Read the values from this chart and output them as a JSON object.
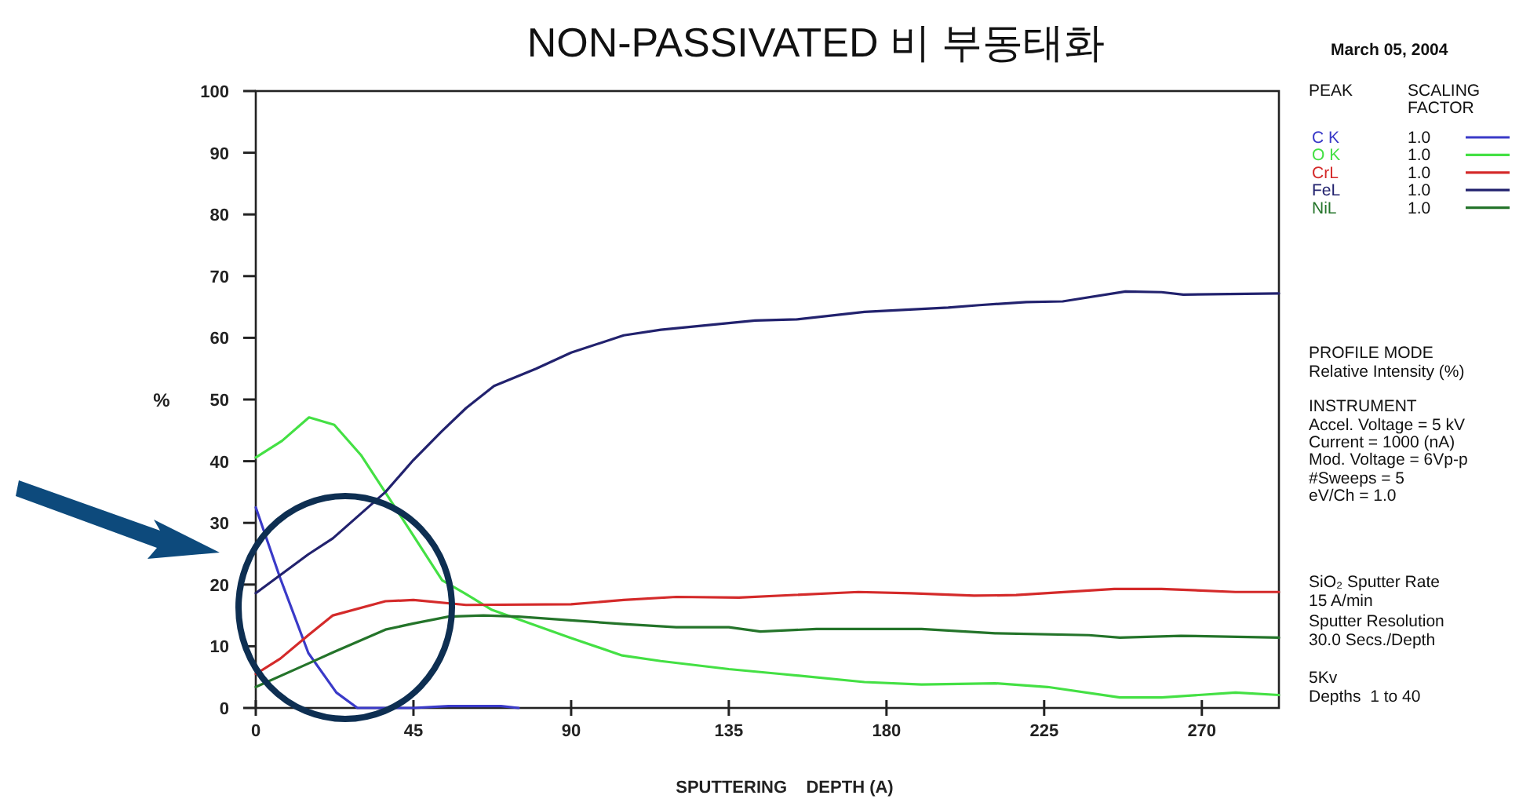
{
  "chart_data": {
    "type": "line",
    "title": "NON-PASSIVATED 비  부동태화",
    "xlabel": "SPUTTERING    DEPTH (A)",
    "ylabel": "%",
    "legend_title": "PEAK",
    "legend": "right",
    "xlim": [
      0,
      292
    ],
    "ylim": [
      0,
      100
    ],
    "xticks": [
      0,
      45,
      90,
      135,
      180,
      225,
      270
    ],
    "yticks": [
      0,
      10,
      20,
      30,
      40,
      50,
      60,
      70,
      80,
      90,
      100
    ],
    "series": [
      {
        "name": "C K",
        "color": "#3a3ac8",
        "x": [
          0,
          7,
          15,
          23,
          29,
          45,
          55,
          60,
          70,
          75
        ],
        "values": [
          32.5,
          21,
          8.9,
          2.5,
          0,
          0,
          0.3,
          0.3,
          0.3,
          0
        ]
      },
      {
        "name": "O K",
        "color": "#44e044",
        "x": [
          0,
          7.5,
          15.2,
          22.4,
          30,
          36.8,
          45,
          53.2,
          59.6,
          67.4,
          89.7,
          104.6,
          115.6,
          135,
          150,
          173.7,
          190,
          211,
          226,
          246.6,
          258.5,
          279.6,
          292
        ],
        "values": [
          40.6,
          43.3,
          47.1,
          45.9,
          41,
          35.1,
          27.9,
          20.7,
          18.6,
          15.9,
          11.4,
          8.5,
          7.6,
          6.3,
          5.5,
          4.2,
          3.8,
          4.0,
          3.4,
          1.7,
          1.7,
          2.5,
          2.1
        ]
      },
      {
        "name": "CrL",
        "color": "#d42a2a",
        "x": [
          0,
          7,
          15,
          22,
          37,
          45,
          60,
          90,
          105,
          120,
          137.9,
          172,
          187,
          205,
          217,
          245,
          258.5,
          279.6,
          292
        ],
        "values": [
          5.5,
          8,
          11.8,
          15,
          17.3,
          17.5,
          16.7,
          16.8,
          17.5,
          18,
          17.9,
          18.8,
          18.6,
          18.2,
          18.3,
          19.3,
          19.3,
          18.8,
          18.8
        ]
      },
      {
        "name": "FeL",
        "color": "#22226e",
        "x": [
          0,
          15,
          22,
          30,
          37,
          45,
          53,
          60,
          68,
          80,
          90,
          105,
          115.6,
          135,
          142.5,
          154.4,
          173.7,
          197.6,
          206.5,
          219.9,
          230.3,
          248.2,
          258.5,
          264.7,
          292
        ],
        "values": [
          18.6,
          24.9,
          27.5,
          31.5,
          35,
          40.2,
          44.8,
          48.6,
          52.2,
          55,
          57.6,
          60.4,
          61.3,
          62.4,
          62.8,
          63,
          64.2,
          64.9,
          65.3,
          65.8,
          65.9,
          67.5,
          67.4,
          67,
          67.2
        ]
      },
      {
        "name": "NiL",
        "color": "#24742a",
        "x": [
          0,
          15,
          22,
          37,
          45,
          55,
          65,
          75,
          90,
          105,
          120,
          135,
          144,
          160,
          190,
          211,
          237.8,
          246.6,
          264,
          292
        ],
        "values": [
          3.4,
          7.2,
          9,
          12.7,
          13.7,
          14.8,
          15,
          14.8,
          14.2,
          13.6,
          13.1,
          13.1,
          12.4,
          12.8,
          12.8,
          12.1,
          11.8,
          11.4,
          11.7,
          11.4
        ]
      }
    ],
    "annotations": [
      "March 05, 2004",
      "SCALING FACTOR",
      "1.0",
      "1.0",
      "1.0",
      "1.0",
      "1.0",
      "PROFILE MODE",
      "Relative Intensity (%)",
      "INSTRUMENT",
      "Accel. Voltage = 5 kV",
      "Current = 1000 (nA)",
      "Mod. Voltage = 6Vp-p",
      "#Sweeps = 5",
      "eV/Ch = 1.0",
      "SiO₂ Sputter Rate",
      "15 A/min",
      "Sputter Resolution",
      "30.0 Secs./Depth",
      "5Kv",
      "Depths  1 to 40"
    ]
  }
}
